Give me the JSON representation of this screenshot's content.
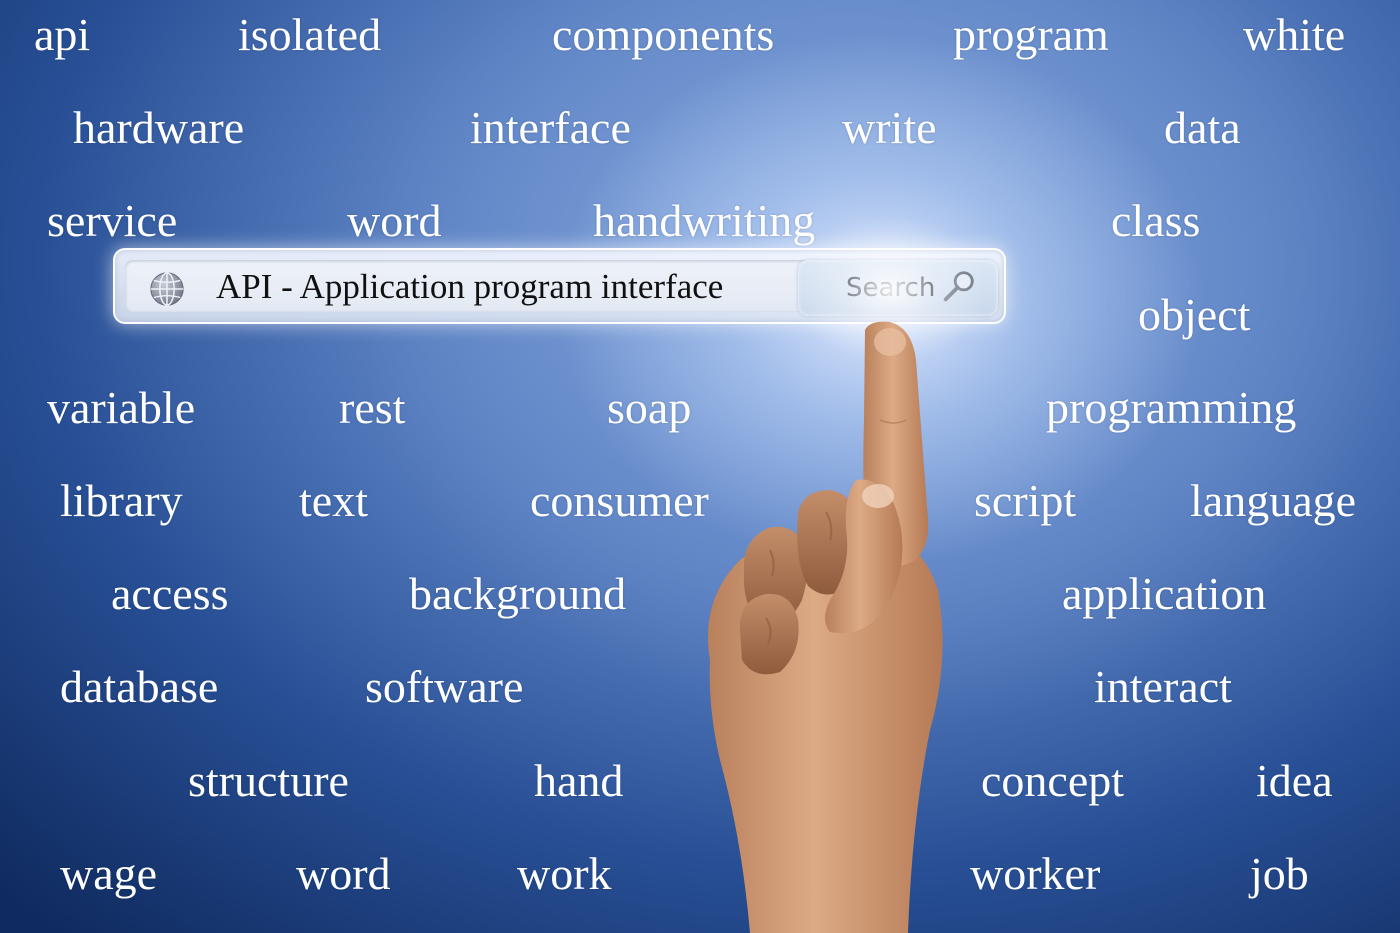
{
  "words": [
    {
      "text": "api"
    },
    {
      "text": "isolated"
    },
    {
      "text": "components"
    },
    {
      "text": "program"
    },
    {
      "text": "white"
    },
    {
      "text": "hardware"
    },
    {
      "text": "interface"
    },
    {
      "text": "write"
    },
    {
      "text": "data"
    },
    {
      "text": "service"
    },
    {
      "text": "word"
    },
    {
      "text": "handwriting"
    },
    {
      "text": "class"
    },
    {
      "text": "object"
    },
    {
      "text": "variable"
    },
    {
      "text": "rest"
    },
    {
      "text": "soap"
    },
    {
      "text": "programming"
    },
    {
      "text": "library"
    },
    {
      "text": "text"
    },
    {
      "text": "consumer"
    },
    {
      "text": "script"
    },
    {
      "text": "language"
    },
    {
      "text": "access"
    },
    {
      "text": "background"
    },
    {
      "text": "application"
    },
    {
      "text": "database"
    },
    {
      "text": "software"
    },
    {
      "text": "interact"
    },
    {
      "text": "structure"
    },
    {
      "text": "hand"
    },
    {
      "text": "concept"
    },
    {
      "text": "idea"
    },
    {
      "text": "wage"
    },
    {
      "text": "word"
    },
    {
      "text": "work"
    },
    {
      "text": "worker"
    },
    {
      "text": "job"
    }
  ],
  "search": {
    "query": "API - Application program interface",
    "button_label": "Search",
    "icon": "globe-icon",
    "button_icon": "search-icon"
  },
  "colors": {
    "background_dark": "#0f2a5e",
    "background_light": "#8fb1e6",
    "text": "#ffffff",
    "skin": "#d9a37e"
  }
}
